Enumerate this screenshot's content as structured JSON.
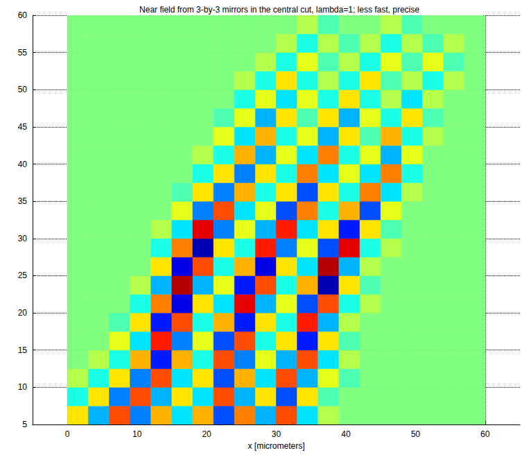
{
  "chart_data": {
    "type": "heatmap",
    "title": "Near field from 3-by-3 mirrors in the central cut, lambda=1; less fast, precise",
    "xlabel": "x [micrometers]",
    "xlim": [
      -5,
      65
    ],
    "xticks": [
      0,
      10,
      20,
      30,
      40,
      50,
      60
    ],
    "ylim": [
      5,
      60
    ],
    "yticks": [
      5,
      10,
      15,
      20,
      25,
      30,
      35,
      40,
      45,
      50,
      55,
      60
    ],
    "grid": true,
    "color_range": [
      -1,
      1
    ],
    "x_edges": [
      0,
      3,
      6,
      9,
      12,
      15,
      18,
      21,
      24,
      27,
      30,
      33,
      36,
      39,
      42,
      45,
      48,
      51,
      54,
      57,
      60
    ],
    "y_edges": [
      5,
      7.5,
      10,
      12.5,
      15,
      17.5,
      20,
      22.5,
      25,
      27.5,
      30,
      32.5,
      35,
      37.5,
      40,
      42.5,
      45,
      47.5,
      50,
      52.5,
      55,
      57.5,
      60
    ],
    "cells": [
      [
        0.3,
        -0.4,
        0.6,
        -0.5,
        0.4,
        -0.3,
        0.4,
        -0.6,
        0.5,
        -0.4,
        0.6,
        -0.3,
        0.1,
        0,
        0,
        0,
        0,
        0,
        0,
        0
      ],
      [
        -0.2,
        0.3,
        -0.5,
        0.6,
        -0.4,
        0.3,
        -0.3,
        0.6,
        -0.4,
        0.3,
        -0.6,
        0.3,
        -0.1,
        0,
        0,
        0,
        0,
        0,
        0,
        0
      ],
      [
        0.1,
        -0.2,
        0.3,
        -0.5,
        0.6,
        -0.3,
        0.3,
        -0.6,
        0.4,
        -0.3,
        0.6,
        -0.4,
        0.2,
        -0.1,
        0,
        0,
        0,
        0,
        0,
        0
      ],
      [
        0,
        0.1,
        -0.2,
        0.4,
        -0.7,
        0.4,
        -0.2,
        0.6,
        -0.5,
        0.2,
        -0.4,
        0.6,
        -0.3,
        0.1,
        0,
        0,
        0,
        0,
        0,
        0
      ],
      [
        0,
        0,
        0.2,
        -0.3,
        0.7,
        -0.5,
        0.2,
        -0.6,
        0.6,
        -0.2,
        0.3,
        -0.7,
        0.3,
        -0.1,
        0,
        0,
        0,
        0,
        0,
        0
      ],
      [
        0,
        0,
        -0.1,
        0.3,
        -0.7,
        0.6,
        -0.2,
        0.4,
        -0.7,
        0.3,
        -0.2,
        0.7,
        -0.4,
        0.1,
        0,
        0,
        0,
        0,
        0,
        0
      ],
      [
        0,
        0,
        0,
        -0.2,
        0.5,
        -0.8,
        0.3,
        -0.3,
        0.8,
        -0.4,
        0.2,
        -0.6,
        0.6,
        -0.2,
        0.1,
        0,
        0,
        0,
        0,
        0
      ],
      [
        0,
        0,
        0,
        0.1,
        -0.4,
        0.9,
        -0.4,
        0.2,
        -0.7,
        0.6,
        -0.2,
        0.4,
        -0.9,
        0.3,
        -0.1,
        0,
        0,
        0,
        0,
        0
      ],
      [
        0,
        0,
        0,
        0,
        0.3,
        -0.8,
        0.6,
        -0.2,
        0.4,
        -0.8,
        0.3,
        -0.3,
        0.9,
        -0.4,
        0.1,
        0,
        0,
        0,
        0,
        0
      ],
      [
        0,
        0,
        0,
        0,
        -0.2,
        0.5,
        -0.9,
        0.3,
        -0.2,
        0.7,
        -0.5,
        0.2,
        -0.6,
        0.8,
        -0.2,
        0.1,
        0,
        0,
        0,
        0
      ],
      [
        0,
        0,
        0,
        0,
        0.1,
        -0.3,
        0.8,
        -0.5,
        0.2,
        -0.4,
        0.7,
        -0.3,
        0.3,
        -0.7,
        0.3,
        -0.1,
        0,
        0,
        0,
        0
      ],
      [
        0,
        0,
        0,
        0,
        0,
        0.2,
        -0.5,
        0.6,
        -0.3,
        0.2,
        -0.6,
        0.5,
        -0.2,
        0.4,
        -0.6,
        0.2,
        0,
        0,
        0,
        0
      ],
      [
        0,
        0,
        0,
        0,
        0,
        -0.1,
        0.3,
        -0.5,
        0.4,
        -0.2,
        0.3,
        -0.6,
        0.3,
        -0.2,
        0.5,
        -0.3,
        0.1,
        0,
        0,
        0
      ],
      [
        0,
        0,
        0,
        0,
        0,
        0,
        -0.2,
        0.3,
        -0.5,
        0.3,
        -0.2,
        0.5,
        -0.3,
        0.2,
        -0.3,
        0.5,
        -0.2,
        0,
        0,
        0
      ],
      [
        0,
        0,
        0,
        0,
        0,
        0,
        0.1,
        -0.2,
        0.4,
        -0.4,
        0.2,
        -0.3,
        0.5,
        -0.2,
        0.2,
        -0.4,
        0.2,
        0,
        0,
        0
      ],
      [
        0,
        0,
        0,
        0,
        0,
        0,
        0,
        0.2,
        -0.3,
        0.4,
        -0.2,
        0.2,
        -0.4,
        0.3,
        -0.1,
        0.4,
        -0.2,
        0.1,
        0,
        0
      ],
      [
        0,
        0,
        0,
        0,
        0,
        0,
        0,
        -0.1,
        0.2,
        -0.4,
        0.3,
        -0.1,
        0.3,
        -0.4,
        0.2,
        -0.2,
        0.3,
        -0.1,
        0,
        0
      ],
      [
        0,
        0,
        0,
        0,
        0,
        0,
        0,
        0,
        -0.2,
        0.2,
        -0.3,
        0.2,
        -0.2,
        0.3,
        -0.2,
        0.1,
        -0.3,
        0.1,
        0,
        0
      ],
      [
        0,
        0,
        0,
        0,
        0,
        0,
        0,
        0,
        0.1,
        -0.2,
        0.3,
        -0.2,
        0.1,
        -0.2,
        0.3,
        -0.1,
        0.1,
        -0.2,
        0.1,
        0
      ],
      [
        0,
        0,
        0,
        0,
        0,
        0,
        0,
        0,
        0,
        0.1,
        -0.2,
        0.2,
        -0.1,
        0.1,
        -0.2,
        0.2,
        -0.1,
        0.2,
        -0.1,
        0
      ],
      [
        0,
        0,
        0,
        0,
        0,
        0,
        0,
        0,
        0,
        0,
        0.1,
        -0.2,
        0.1,
        -0.1,
        0.1,
        -0.2,
        0.1,
        -0.1,
        0.1,
        0
      ],
      [
        0,
        0,
        0,
        0,
        0,
        0,
        0,
        0,
        0,
        0,
        0,
        0.1,
        -0.1,
        0,
        0,
        0.1,
        -0.1,
        0,
        0,
        0
      ]
    ]
  }
}
